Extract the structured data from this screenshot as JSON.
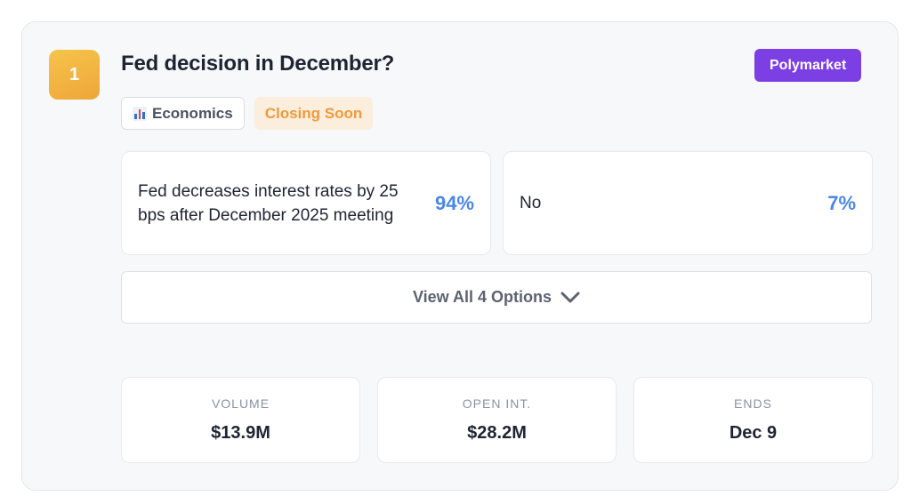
{
  "market": {
    "rank": "1",
    "title": "Fed decision in December?",
    "source": "Polymarket",
    "category": {
      "icon": "bar-chart-icon",
      "label": "Economics"
    },
    "status": "Closing Soon",
    "options": [
      {
        "label": "Fed decreases interest rates by 25 bps after December 2025 meeting",
        "percent": "94%"
      },
      {
        "label": "No",
        "percent": "7%"
      }
    ],
    "view_all_label": "View All 4 Options",
    "stats": [
      {
        "label": "VOLUME",
        "value": "$13.9M"
      },
      {
        "label": "OPEN INT.",
        "value": "$28.2M"
      },
      {
        "label": "ENDS",
        "value": "Dec 9"
      }
    ]
  },
  "colors": {
    "accent_purple": "#7b3fe4",
    "rank_gold": "#f0ad3c",
    "percent_blue": "#4a86e8",
    "status_orange": "#ef9a3c"
  }
}
